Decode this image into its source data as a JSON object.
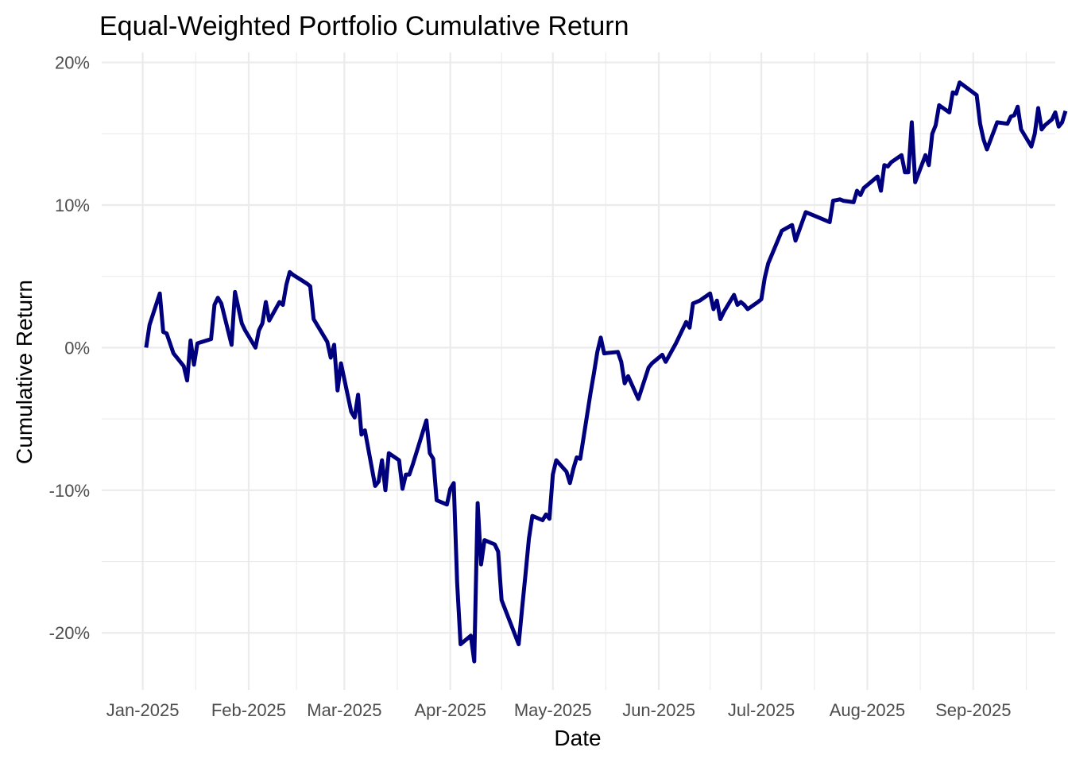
{
  "chart_data": {
    "type": "line",
    "title": "Equal-Weighted Portfolio Cumulative Return",
    "xlabel": "Date",
    "ylabel": "Cumulative Return",
    "x_tick_labels": [
      "Jan-2025",
      "Feb-2025",
      "Mar-2025",
      "Apr-2025",
      "May-2025",
      "Jun-2025",
      "Jul-2025",
      "Aug-2025",
      "Sep-2025"
    ],
    "x_tick_dates": [
      "2025-01-01",
      "2025-02-01",
      "2025-03-01",
      "2025-04-01",
      "2025-05-01",
      "2025-06-01",
      "2025-07-01",
      "2025-08-01",
      "2025-09-01"
    ],
    "y_tick_labels": [
      "-20%",
      "-10%",
      "0%",
      "10%",
      "20%"
    ],
    "y_tick_values": [
      -20,
      -10,
      0,
      10,
      20
    ],
    "xlim": [
      "2024-12-20",
      "2025-09-25"
    ],
    "ylim": [
      -24,
      20.7
    ],
    "grid": true,
    "line_color": "#00007F",
    "series": [
      {
        "points": [
          [
            "2025-01-02",
            0.0
          ],
          [
            "2025-01-03",
            1.6
          ],
          [
            "2025-01-06",
            3.8
          ],
          [
            "2025-01-07",
            1.1
          ],
          [
            "2025-01-08",
            1.0
          ],
          [
            "2025-01-10",
            -0.4
          ],
          [
            "2025-01-13",
            -1.3
          ],
          [
            "2025-01-14",
            -2.3
          ],
          [
            "2025-01-15",
            0.5
          ],
          [
            "2025-01-16",
            -1.2
          ],
          [
            "2025-01-17",
            0.3
          ],
          [
            "2025-01-21",
            0.6
          ],
          [
            "2025-01-22",
            3.0
          ],
          [
            "2025-01-23",
            3.5
          ],
          [
            "2025-01-24",
            3.1
          ],
          [
            "2025-01-27",
            0.2
          ],
          [
            "2025-01-28",
            3.9
          ],
          [
            "2025-01-30",
            1.7
          ],
          [
            "2025-01-31",
            1.2
          ],
          [
            "2025-02-03",
            0.0
          ],
          [
            "2025-02-04",
            1.2
          ],
          [
            "2025-02-05",
            1.7
          ],
          [
            "2025-02-06",
            3.2
          ],
          [
            "2025-02-07",
            1.9
          ],
          [
            "2025-02-10",
            3.2
          ],
          [
            "2025-02-11",
            3.0
          ],
          [
            "2025-02-12",
            4.4
          ],
          [
            "2025-02-13",
            5.3
          ],
          [
            "2025-02-14",
            5.1
          ],
          [
            "2025-02-18",
            4.5
          ],
          [
            "2025-02-19",
            4.3
          ],
          [
            "2025-02-20",
            2.0
          ],
          [
            "2025-02-24",
            0.4
          ],
          [
            "2025-02-25",
            -0.7
          ],
          [
            "2025-02-26",
            0.2
          ],
          [
            "2025-02-27",
            -3.0
          ],
          [
            "2025-02-28",
            -1.1
          ],
          [
            "2025-03-03",
            -4.5
          ],
          [
            "2025-03-04",
            -4.9
          ],
          [
            "2025-03-05",
            -3.3
          ],
          [
            "2025-03-06",
            -6.1
          ],
          [
            "2025-03-07",
            -5.8
          ],
          [
            "2025-03-10",
            -9.7
          ],
          [
            "2025-03-11",
            -9.4
          ],
          [
            "2025-03-12",
            -7.9
          ],
          [
            "2025-03-13",
            -10.0
          ],
          [
            "2025-03-14",
            -7.4
          ],
          [
            "2025-03-17",
            -7.9
          ],
          [
            "2025-03-18",
            -9.9
          ],
          [
            "2025-03-19",
            -8.9
          ],
          [
            "2025-03-20",
            -8.9
          ],
          [
            "2025-03-21",
            -8.2
          ],
          [
            "2025-03-25",
            -5.1
          ],
          [
            "2025-03-26",
            -7.4
          ],
          [
            "2025-03-27",
            -7.8
          ],
          [
            "2025-03-28",
            -10.7
          ],
          [
            "2025-03-31",
            -11.0
          ],
          [
            "2025-04-01",
            -9.9
          ],
          [
            "2025-04-02",
            -9.5
          ],
          [
            "2025-04-03",
            -16.5
          ],
          [
            "2025-04-04",
            -20.8
          ],
          [
            "2025-04-07",
            -20.2
          ],
          [
            "2025-04-08",
            -22.0
          ],
          [
            "2025-04-09",
            -10.9
          ],
          [
            "2025-04-10",
            -15.2
          ],
          [
            "2025-04-11",
            -13.5
          ],
          [
            "2025-04-14",
            -13.8
          ],
          [
            "2025-04-15",
            -14.3
          ],
          [
            "2025-04-16",
            -17.7
          ],
          [
            "2025-04-21",
            -20.8
          ],
          [
            "2025-04-22",
            -18.3
          ],
          [
            "2025-04-23",
            -15.9
          ],
          [
            "2025-04-24",
            -13.4
          ],
          [
            "2025-04-25",
            -11.8
          ],
          [
            "2025-04-28",
            -12.1
          ],
          [
            "2025-04-29",
            -11.7
          ],
          [
            "2025-04-30",
            -12.0
          ],
          [
            "2025-05-01",
            -8.9
          ],
          [
            "2025-05-02",
            -7.9
          ],
          [
            "2025-05-05",
            -8.7
          ],
          [
            "2025-05-06",
            -9.5
          ],
          [
            "2025-05-07",
            -8.5
          ],
          [
            "2025-05-08",
            -7.7
          ],
          [
            "2025-05-09",
            -7.8
          ],
          [
            "2025-05-12",
            -3.2
          ],
          [
            "2025-05-13",
            -1.8
          ],
          [
            "2025-05-14",
            -0.3
          ],
          [
            "2025-05-15",
            0.7
          ],
          [
            "2025-05-16",
            -0.4
          ],
          [
            "2025-05-20",
            -0.3
          ],
          [
            "2025-05-21",
            -1.0
          ],
          [
            "2025-05-22",
            -2.5
          ],
          [
            "2025-05-23",
            -2.0
          ],
          [
            "2025-05-26",
            -3.6
          ],
          [
            "2025-05-29",
            -1.4
          ],
          [
            "2025-05-30",
            -1.1
          ],
          [
            "2025-06-02",
            -0.5
          ],
          [
            "2025-06-03",
            -1.0
          ],
          [
            "2025-06-06",
            0.3
          ],
          [
            "2025-06-09",
            1.8
          ],
          [
            "2025-06-10",
            1.4
          ],
          [
            "2025-06-11",
            3.1
          ],
          [
            "2025-06-13",
            3.3
          ],
          [
            "2025-06-16",
            3.8
          ],
          [
            "2025-06-17",
            2.7
          ],
          [
            "2025-06-18",
            3.3
          ],
          [
            "2025-06-19",
            2.0
          ],
          [
            "2025-06-20",
            2.5
          ],
          [
            "2025-06-23",
            3.7
          ],
          [
            "2025-06-24",
            3.0
          ],
          [
            "2025-06-25",
            3.2
          ],
          [
            "2025-06-26",
            3.0
          ],
          [
            "2025-06-27",
            2.7
          ],
          [
            "2025-06-30",
            3.2
          ],
          [
            "2025-07-01",
            3.4
          ],
          [
            "2025-07-02",
            4.9
          ],
          [
            "2025-07-03",
            5.9
          ],
          [
            "2025-07-07",
            8.2
          ],
          [
            "2025-07-10",
            8.6
          ],
          [
            "2025-07-11",
            7.5
          ],
          [
            "2025-07-14",
            9.5
          ],
          [
            "2025-07-18",
            9.1
          ],
          [
            "2025-07-21",
            8.8
          ],
          [
            "2025-07-22",
            10.3
          ],
          [
            "2025-07-24",
            10.4
          ],
          [
            "2025-07-25",
            10.3
          ],
          [
            "2025-07-28",
            10.2
          ],
          [
            "2025-07-29",
            11.0
          ],
          [
            "2025-07-30",
            10.7
          ],
          [
            "2025-07-31",
            11.2
          ],
          [
            "2025-08-01",
            11.4
          ],
          [
            "2025-08-04",
            12.0
          ],
          [
            "2025-08-05",
            11.0
          ],
          [
            "2025-08-06",
            12.8
          ],
          [
            "2025-08-07",
            12.7
          ],
          [
            "2025-08-08",
            13.0
          ],
          [
            "2025-08-11",
            13.5
          ],
          [
            "2025-08-12",
            12.3
          ],
          [
            "2025-08-13",
            12.3
          ],
          [
            "2025-08-14",
            15.8
          ],
          [
            "2025-08-15",
            11.6
          ],
          [
            "2025-08-18",
            13.5
          ],
          [
            "2025-08-19",
            12.8
          ],
          [
            "2025-08-20",
            15.0
          ],
          [
            "2025-08-21",
            15.6
          ],
          [
            "2025-08-22",
            17.0
          ],
          [
            "2025-08-25",
            16.5
          ],
          [
            "2025-08-26",
            17.9
          ],
          [
            "2025-08-27",
            17.8
          ],
          [
            "2025-08-28",
            18.6
          ],
          [
            "2025-09-02",
            17.7
          ],
          [
            "2025-09-03",
            15.7
          ],
          [
            "2025-09-04",
            14.6
          ],
          [
            "2025-09-05",
            13.9
          ],
          [
            "2025-09-08",
            15.8
          ],
          [
            "2025-09-11",
            15.7
          ],
          [
            "2025-09-12",
            16.2
          ],
          [
            "2025-09-13",
            16.3
          ],
          [
            "2025-09-14",
            16.9
          ],
          [
            "2025-09-15",
            15.3
          ],
          [
            "2025-09-18",
            14.1
          ],
          [
            "2025-09-19",
            15.0
          ],
          [
            "2025-09-20",
            16.8
          ],
          [
            "2025-09-21",
            15.3
          ],
          [
            "2025-09-22",
            15.6
          ],
          [
            "2025-09-24",
            16.0
          ],
          [
            "2025-09-25",
            16.5
          ],
          [
            "2025-09-26",
            15.5
          ],
          [
            "2025-09-27",
            15.8
          ],
          [
            "2025-09-28",
            16.6
          ]
        ]
      }
    ]
  }
}
